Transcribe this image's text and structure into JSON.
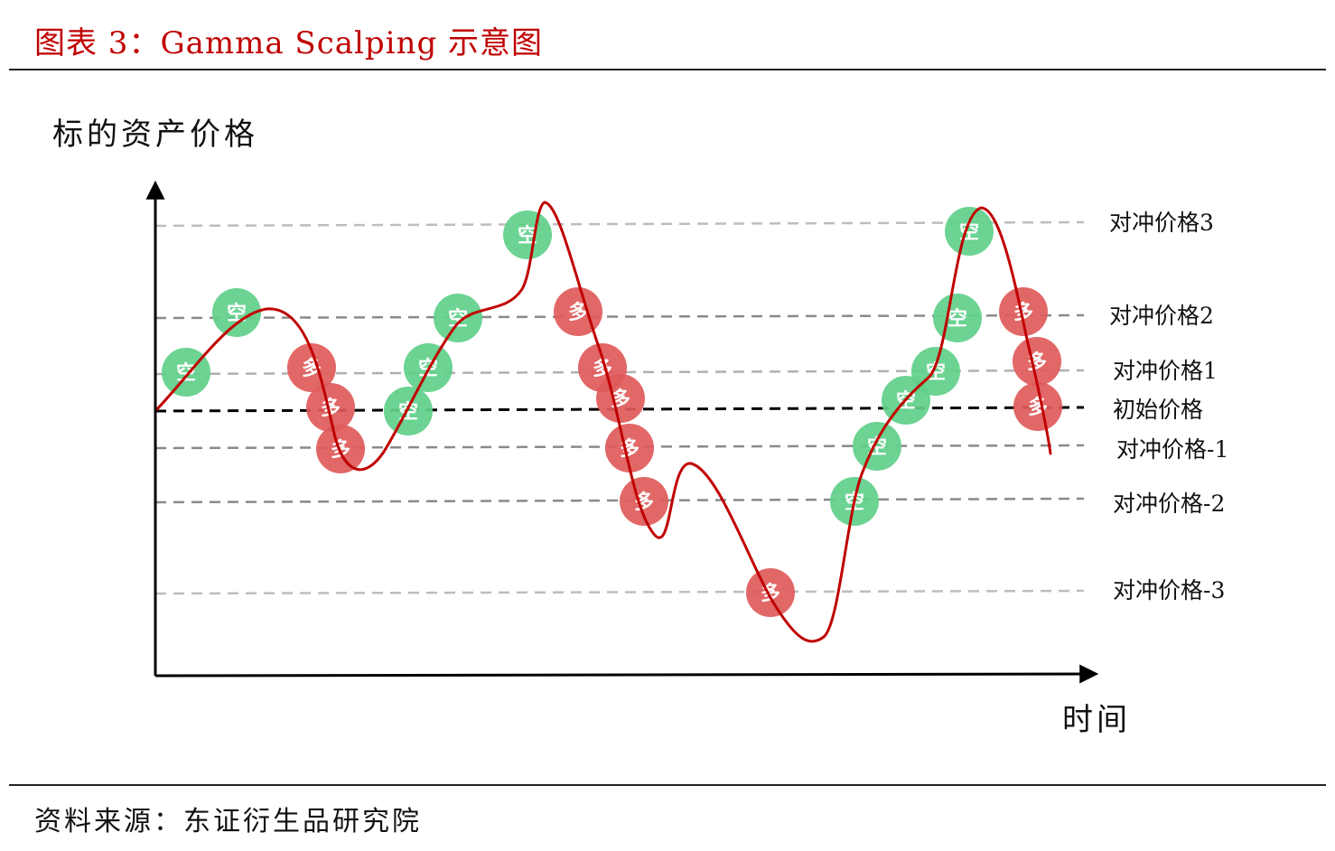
{
  "header": {
    "title": "图表 3：Gamma Scalping 示意图"
  },
  "footer": {
    "source": "资料来源：东证衍生品研究院"
  },
  "diagram": {
    "y_axis_label": "标的资产价格",
    "x_axis_label": "时间",
    "levels": [
      {
        "id": "hedge-3",
        "label": "对冲价格3",
        "style": "light"
      },
      {
        "id": "hedge-2",
        "label": "对冲价格2",
        "style": "medium"
      },
      {
        "id": "hedge-1",
        "label": "对冲价格1",
        "style": "light"
      },
      {
        "id": "initial",
        "label": "初始价格",
        "style": "dark"
      },
      {
        "id": "hedge-neg1",
        "label": "对冲价格-1",
        "style": "medium"
      },
      {
        "id": "hedge-neg2",
        "label": "对冲价格-2",
        "style": "medium"
      },
      {
        "id": "hedge-neg3",
        "label": "对冲价格-3",
        "style": "light"
      }
    ],
    "marker_labels": {
      "short": "空",
      "long": "多"
    },
    "colors": {
      "price_curve": "#c00000",
      "short_marker": "#5fcf8a",
      "long_marker": "#e05a5a",
      "axis": "#000000",
      "title": "#c00000"
    }
  }
}
